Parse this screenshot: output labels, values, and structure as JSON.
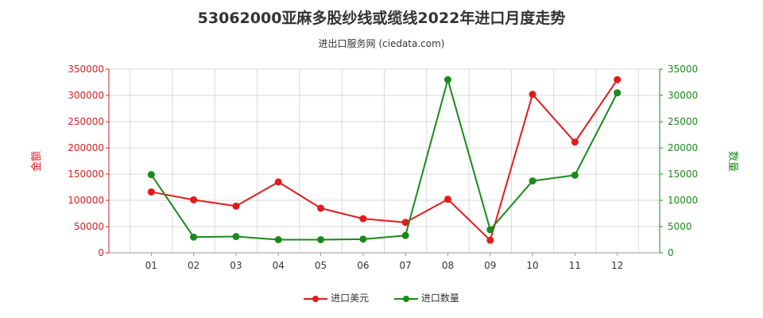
{
  "chart_data": {
    "type": "line",
    "title": "53062000亚麻多股纱线或缆线2022年进口月度走势",
    "subtitle": "进出口服务网 (ciedata.com)",
    "categories": [
      "01",
      "02",
      "03",
      "04",
      "05",
      "06",
      "07",
      "08",
      "09",
      "10",
      "11",
      "12"
    ],
    "y_left": {
      "label": "金额",
      "ylim": [
        0,
        350000
      ],
      "ticks": [
        0,
        50000,
        100000,
        150000,
        200000,
        250000,
        300000,
        350000
      ],
      "color": "#d42020"
    },
    "y_right": {
      "label": "数量",
      "ylim": [
        0,
        35000
      ],
      "ticks": [
        0,
        5000,
        10000,
        15000,
        20000,
        25000,
        30000,
        35000
      ],
      "color": "#1a8a1a"
    },
    "series": [
      {
        "name": "进口美元",
        "axis": "left",
        "color": "#e31a1c",
        "values": [
          116000,
          101000,
          89000,
          135000,
          85000,
          65000,
          58000,
          102000,
          24000,
          302000,
          211000,
          330000
        ]
      },
      {
        "name": "进口数量",
        "axis": "right",
        "color": "#1a8a1a",
        "values": [
          14900,
          3000,
          3100,
          2500,
          2500,
          2600,
          3300,
          33000,
          4400,
          13700,
          14800,
          30500
        ]
      }
    ],
    "grid": true,
    "legend": "bottom-center"
  }
}
